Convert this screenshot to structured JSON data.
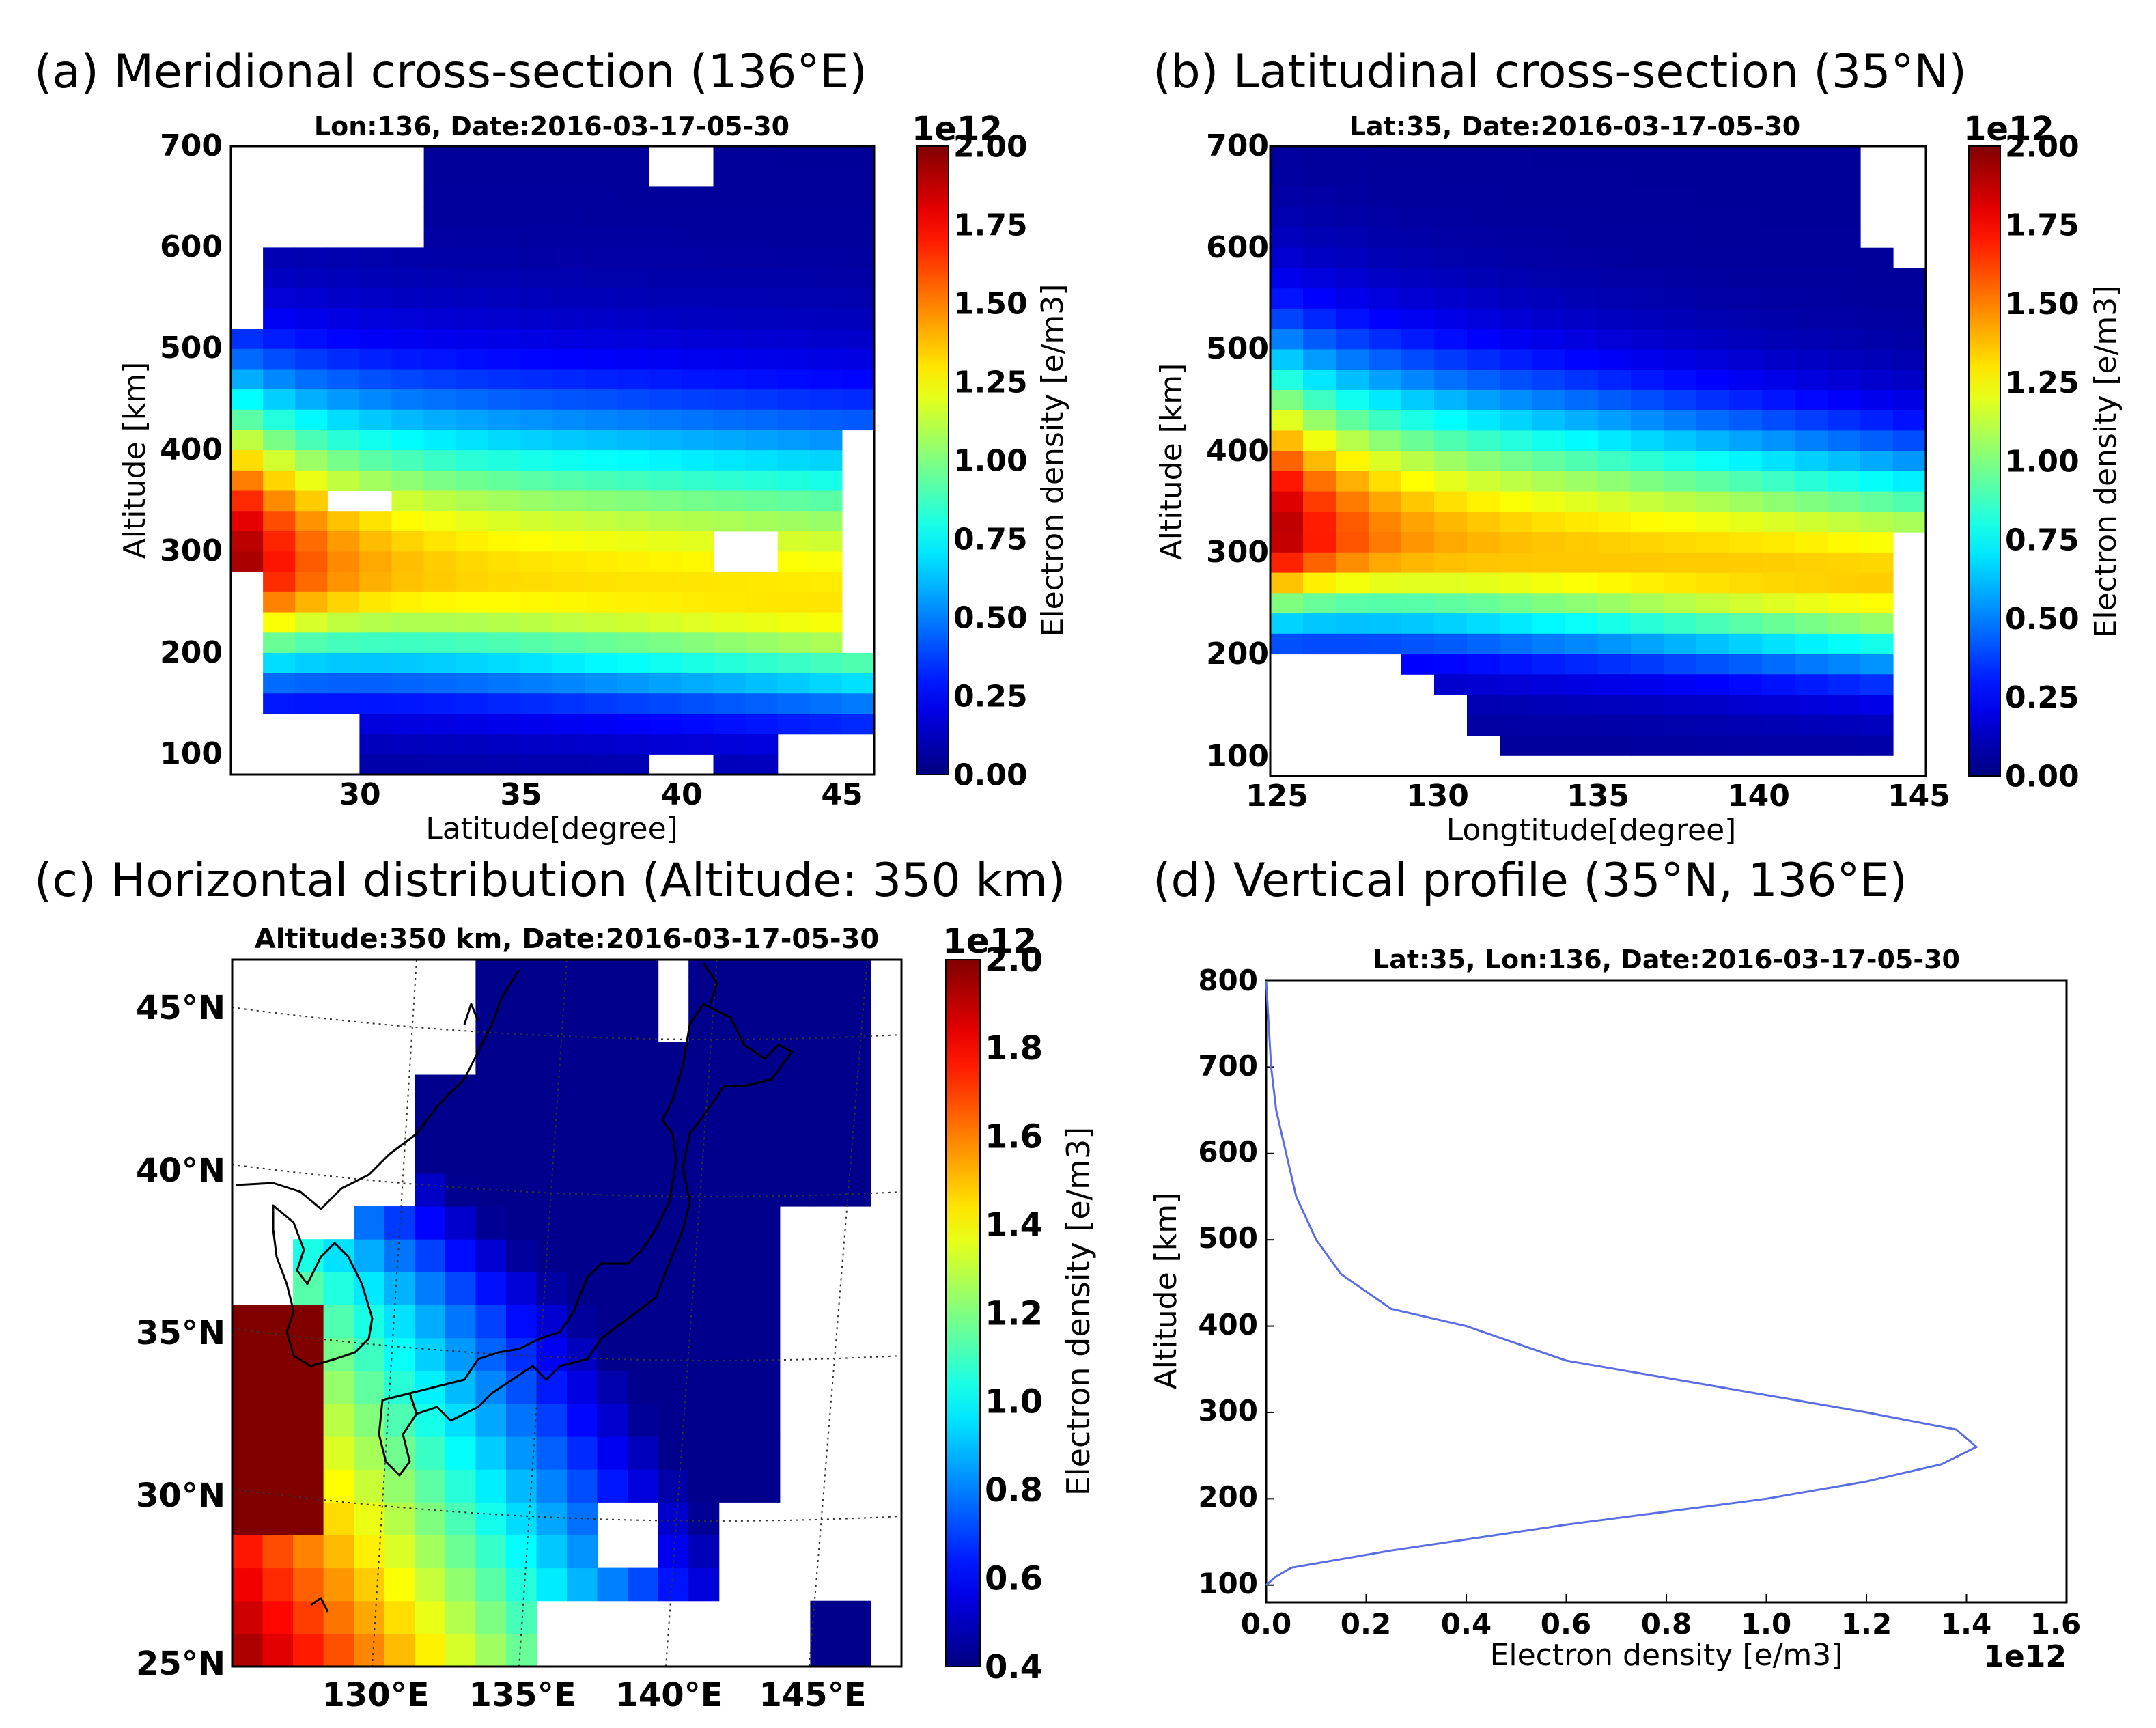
{
  "panels": {
    "a": {
      "heading": "(a) Meridional cross-section (136°E)",
      "title": "Lon:136, Date:2016-03-17-05-30",
      "xlabel": "Latitude[degree]",
      "ylabel": "Altitude [km]",
      "xticks": [
        "30",
        "35",
        "40",
        "45"
      ],
      "yticks": [
        "100",
        "200",
        "300",
        "400",
        "500",
        "600",
        "700"
      ],
      "colorbar_label": "Electron density [e/m3]",
      "colorbar_exp": "1e12",
      "colorbar_ticks": [
        "0.00",
        "0.25",
        "0.50",
        "0.75",
        "1.00",
        "1.25",
        "1.50",
        "1.75",
        "2.00"
      ]
    },
    "b": {
      "heading": "(b) Latitudinal cross-section (35°N)",
      "title": "Lat:35, Date:2016-03-17-05-30",
      "xlabel": "Longtitude[degree]",
      "ylabel": "Altitude [km]",
      "xticks": [
        "125",
        "130",
        "135",
        "140",
        "145"
      ],
      "yticks": [
        "100",
        "200",
        "300",
        "400",
        "500",
        "600",
        "700"
      ],
      "colorbar_label": "Electron density [e/m3]",
      "colorbar_exp": "1e12",
      "colorbar_ticks": [
        "0.00",
        "0.25",
        "0.50",
        "0.75",
        "1.00",
        "1.25",
        "1.50",
        "1.75",
        "2.00"
      ]
    },
    "c": {
      "heading": "(c) Horizontal distribution (Altitude: 350 km)",
      "title": "Altitude:350 km, Date:2016-03-17-05-30",
      "xticks": [
        "130°E",
        "135°E",
        "140°E",
        "145°E"
      ],
      "yticks": [
        "25°N",
        "30°N",
        "35°N",
        "40°N",
        "45°N"
      ],
      "colorbar_label": "Electron density [e/m3]",
      "colorbar_exp": "1e12",
      "colorbar_ticks": [
        "0.4",
        "0.6",
        "0.8",
        "1.0",
        "1.2",
        "1.4",
        "1.6",
        "1.8",
        "2.0"
      ]
    },
    "d": {
      "heading": "(d) Vertical profile (35°N, 136°E)",
      "title": "Lat:35, Lon:136, Date:2016-03-17-05-30",
      "xlabel": "Electron density [e/m3]",
      "ylabel": "Altitude [km]",
      "x_exp": "1e12",
      "xticks": [
        "0.0",
        "0.2",
        "0.4",
        "0.6",
        "0.8",
        "1.0",
        "1.2",
        "1.4",
        "1.6"
      ],
      "yticks": [
        "100",
        "200",
        "300",
        "400",
        "500",
        "600",
        "700",
        "800"
      ]
    }
  },
  "colors": {
    "line": "#5b6ee1",
    "missing": "#ffffff",
    "frame": "#000000"
  },
  "chart_data": [
    {
      "type": "heatmap",
      "title": "Lon:136, Date:2016-03-17-05-30",
      "xlabel": "Latitude[degree]",
      "ylabel": "Altitude [km]",
      "xlim": [
        26,
        46
      ],
      "ylim": [
        80,
        700
      ],
      "colorbar": {
        "label": "Electron density [e/m3]",
        "scale": "1e12",
        "range": [
          0,
          2.0
        ]
      },
      "description_values": "peak ~2.0e12 near 26-27N at ~300 km; ~1.2-1.5e12 band at 250-320 km across latitudes; near 0 above 500 km and below 150 km"
    },
    {
      "type": "heatmap",
      "title": "Lat:35, Date:2016-03-17-05-30",
      "xlabel": "Longtitude[degree]",
      "ylabel": "Altitude [km]",
      "xlim": [
        125,
        145
      ],
      "ylim": [
        80,
        700
      ],
      "colorbar": {
        "label": "Electron density [e/m3]",
        "scale": "1e12",
        "range": [
          0,
          2.0
        ]
      },
      "description_values": "peak ~1.9e12 near 125-127E at ~320 km; ~1.3-1.5e12 band at 250-320 km extending east; missing data lower-left and upper-right"
    },
    {
      "type": "heatmap",
      "title": "Altitude:350 km, Date:2016-03-17-05-30",
      "xlim": [
        125,
        147
      ],
      "ylim": [
        25,
        46
      ],
      "colorbar": {
        "label": "Electron density [e/m3]",
        "scale": "1e12",
        "range": [
          0.4,
          2.0
        ]
      },
      "description_values": "high ~2.0e12 in southwest (125-127E, 30-35N), decreasing to ~0.5e12 in northeast (140-147E, 38-46N)"
    },
    {
      "type": "line",
      "title": "Lat:35, Lon:136, Date:2016-03-17-05-30",
      "xlabel": "Electron density [e/m3]",
      "ylabel": "Altitude [km]",
      "xscale": "1e12",
      "xlim": [
        0,
        1.6
      ],
      "ylim": [
        80,
        800
      ],
      "series": [
        {
          "name": "profile",
          "x": [
            0.0,
            0.02,
            0.05,
            0.25,
            0.6,
            1.0,
            1.2,
            1.35,
            1.42,
            1.38,
            1.2,
            0.9,
            0.6,
            0.4,
            0.25,
            0.15,
            0.1,
            0.06,
            0.04,
            0.02,
            0.01,
            0.0
          ],
          "y": [
            100,
            110,
            120,
            140,
            170,
            200,
            220,
            240,
            260,
            280,
            300,
            330,
            360,
            400,
            420,
            460,
            500,
            550,
            600,
            650,
            700,
            800
          ]
        }
      ]
    }
  ]
}
